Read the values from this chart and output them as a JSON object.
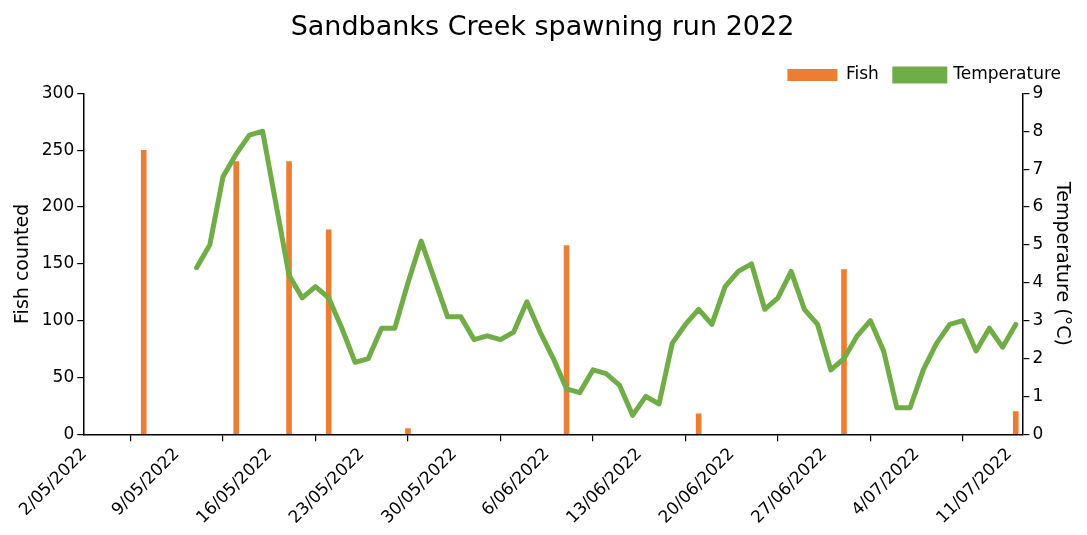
{
  "chart_data": {
    "type": "bar",
    "title": "Sandbanks Creek spawning run 2022",
    "ylabel": "Fish counted",
    "y2label": "Temperature (°C)",
    "xlim": [
      "2022-05-02",
      "2022-07-12"
    ],
    "xticks": [
      {
        "value": "2022-05-02",
        "label": "2/05/2022"
      },
      {
        "value": "2022-05-09",
        "label": "9/05/2022"
      },
      {
        "value": "2022-05-16",
        "label": "16/05/2022"
      },
      {
        "value": "2022-05-23",
        "label": "23/05/2022"
      },
      {
        "value": "2022-05-30",
        "label": "30/05/2022"
      },
      {
        "value": "2022-06-06",
        "label": "6/06/2022"
      },
      {
        "value": "2022-06-13",
        "label": "13/06/2022"
      },
      {
        "value": "2022-06-20",
        "label": "20/06/2022"
      },
      {
        "value": "2022-06-27",
        "label": "27/06/2022"
      },
      {
        "value": "2022-07-04",
        "label": "4/07/2022"
      },
      {
        "value": "2022-07-11",
        "label": "11/07/2022"
      }
    ],
    "ylim": [
      0,
      300
    ],
    "yticks": [
      0,
      50,
      100,
      150,
      200,
      250,
      300
    ],
    "y2lim": [
      0,
      9
    ],
    "y2ticks": [
      0,
      1,
      2,
      3,
      4,
      5,
      6,
      7,
      8,
      9
    ],
    "grid": false,
    "legend": "top right",
    "series": [
      {
        "name": "Fish",
        "color": "#ed7d31",
        "x": [
          "2022-05-06T12:00",
          "2022-05-13T12:00",
          "2022-05-17T12:00",
          "2022-05-20T12:00",
          "2022-05-26T12:00",
          "2022-06-07T12:00",
          "2022-06-17T12:00",
          "2022-06-28T12:00",
          "2022-07-11T12:00"
        ],
        "values": [
          250,
          240,
          240,
          180,
          5,
          166,
          18,
          145,
          20
        ]
      },
      {
        "name": "Temperature",
        "type": "line",
        "axis": "y2",
        "color": "#70ad47",
        "marker": "none",
        "line_style": "solid",
        "x": [
          "2022-05-10T12:00",
          "2022-05-11T12:00",
          "2022-05-12T12:00",
          "2022-05-13T12:00",
          "2022-05-14T12:00",
          "2022-05-15T12:00",
          "2022-05-16T12:00",
          "2022-05-17T12:00",
          "2022-05-18T12:00",
          "2022-05-19T12:00",
          "2022-05-20T12:00",
          "2022-05-21T12:00",
          "2022-05-22T12:00",
          "2022-05-23T12:00",
          "2022-05-24T12:00",
          "2022-05-25T12:00",
          "2022-05-26T12:00",
          "2022-05-27T12:00",
          "2022-05-28T12:00",
          "2022-05-29T12:00",
          "2022-05-30T12:00",
          "2022-05-31T12:00",
          "2022-06-01T12:00",
          "2022-06-02T12:00",
          "2022-06-03T12:00",
          "2022-06-04T12:00",
          "2022-06-05T12:00",
          "2022-06-06T12:00",
          "2022-06-07T12:00",
          "2022-06-08T12:00",
          "2022-06-09T12:00",
          "2022-06-10T12:00",
          "2022-06-11T12:00",
          "2022-06-12T12:00",
          "2022-06-13T12:00",
          "2022-06-14T12:00",
          "2022-06-15T12:00",
          "2022-06-16T12:00",
          "2022-06-17T12:00",
          "2022-06-18T12:00",
          "2022-06-19T12:00",
          "2022-06-20T12:00",
          "2022-06-21T12:00",
          "2022-06-22T12:00",
          "2022-06-23T12:00",
          "2022-06-24T12:00",
          "2022-06-25T12:00",
          "2022-06-26T12:00",
          "2022-06-27T12:00",
          "2022-06-28T12:00",
          "2022-06-29T12:00",
          "2022-06-30T12:00",
          "2022-07-01T12:00",
          "2022-07-02T12:00",
          "2022-07-03T12:00",
          "2022-07-04T12:00",
          "2022-07-05T12:00",
          "2022-07-06T12:00",
          "2022-07-07T12:00",
          "2022-07-08T12:00",
          "2022-07-09T12:00",
          "2022-07-10T12:00",
          "2022-07-11T12:00"
        ],
        "values": [
          4.4,
          5.0,
          6.8,
          7.4,
          7.9,
          8.0,
          6.1,
          4.2,
          3.6,
          3.9,
          3.6,
          2.8,
          1.9,
          2.0,
          2.8,
          2.8,
          4.0,
          5.1,
          4.1,
          3.1,
          3.1,
          2.5,
          2.6,
          2.5,
          2.7,
          3.5,
          2.7,
          2.0,
          1.2,
          1.1,
          1.7,
          1.6,
          1.3,
          0.5,
          1.0,
          0.8,
          2.4,
          2.9,
          3.3,
          2.9,
          3.9,
          4.3,
          4.5,
          3.3,
          3.6,
          4.3,
          3.3,
          2.9,
          1.7,
          2.0,
          2.6,
          3.0,
          2.2,
          0.7,
          0.7,
          1.7,
          2.4,
          2.9,
          3.0,
          2.2,
          2.8,
          2.3,
          2.9
        ]
      }
    ]
  }
}
